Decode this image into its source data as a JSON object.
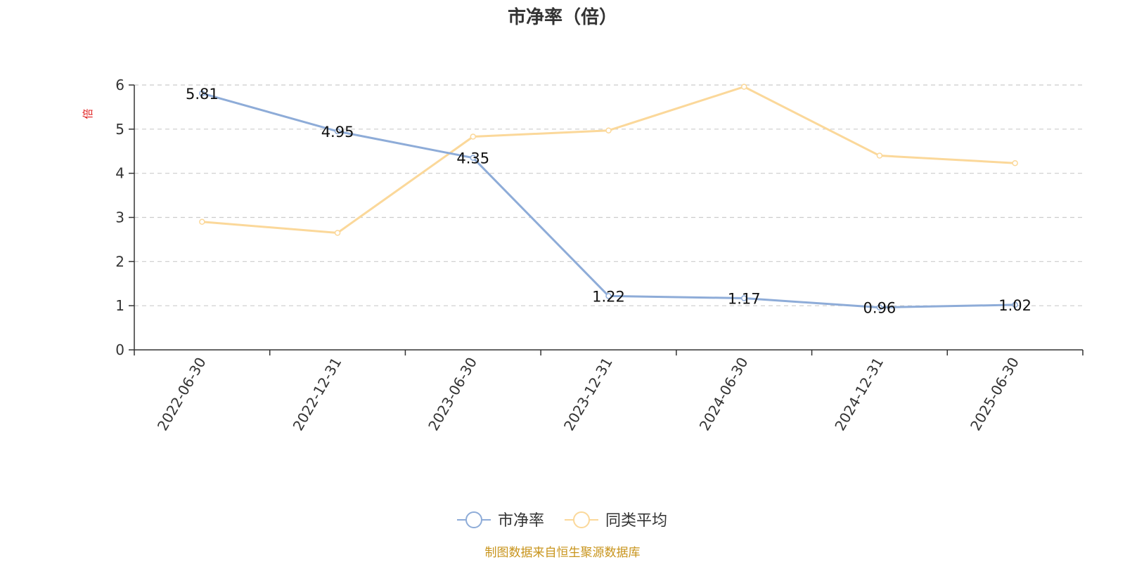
{
  "chart_data": {
    "type": "line",
    "title": "市净率（倍）",
    "ylabel": "倍",
    "categories": [
      "2022-06-30",
      "2022-12-31",
      "2023-06-30",
      "2023-12-31",
      "2024-06-30",
      "2024-12-31",
      "2025-06-30"
    ],
    "series": [
      {
        "name": "市净率",
        "values": [
          5.81,
          4.95,
          4.35,
          1.22,
          1.17,
          0.96,
          1.02
        ],
        "value_labels": [
          "5.81",
          "4.95",
          "4.35",
          "1.22",
          "1.17",
          "0.96",
          "1.02"
        ],
        "color": "#8eacd8",
        "show_labels": true
      },
      {
        "name": "同类平均",
        "values": [
          2.9,
          2.65,
          4.83,
          4.97,
          5.96,
          4.4,
          4.23
        ],
        "color": "#fbd89a",
        "show_labels": false
      }
    ],
    "ylim": [
      0,
      6
    ],
    "yticks": [
      "0",
      "1",
      "2",
      "3",
      "4",
      "5",
      "6"
    ],
    "grid": true,
    "legend_position": "bottom-center"
  },
  "colors": {
    "unit_label": "#e02020",
    "source_text": "#c8941c",
    "axis": "#333333",
    "grid": "#cccccc"
  },
  "footer": {
    "source": "制图数据来自恒生聚源数据库"
  }
}
